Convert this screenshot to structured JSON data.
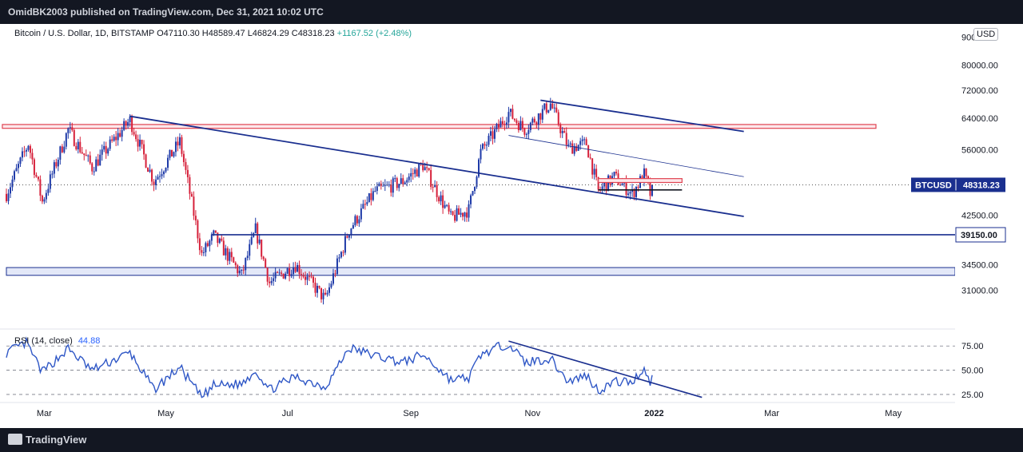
{
  "header": {
    "publisher": "OmidBK2003 published on TradingView.com, Dec 31, 2021 10:02 UTC"
  },
  "legend": {
    "symbol": "Bitcoin / U.S. Dollar, 1D, BITSTAMP",
    "open": "O47110.30",
    "high": "H48589.47",
    "low": "L46824.29",
    "close": "C48318.23",
    "change": "+1167.52 (+2.48%)"
  },
  "currency_button": "USD",
  "footer": {
    "brand": "TradingView"
  },
  "colors": {
    "up": "#26a69a",
    "down": "#ef5350",
    "candle_up": "#1e3aa8",
    "candle_down": "#d6203a",
    "line": "#1a2f8f",
    "rsi": "#2f57c6",
    "resistance": "#e04452"
  },
  "chart_data": {
    "type": "candlestick",
    "y_axis": {
      "scale": "log",
      "visible_range": [
        26500,
        92000
      ],
      "tick_labels": [
        "90000.00",
        "80000.00",
        "72000.00",
        "64000.00",
        "56000.00",
        "42500.00",
        "34500.00",
        "31000.00"
      ],
      "tick_values": [
        90000,
        80000,
        72000,
        64000,
        56000,
        42500,
        34500,
        31000
      ],
      "price_label": "BTCUSD",
      "price_value": "48318.23",
      "level_label": "39150.00",
      "level_value": 39150
    },
    "x_axis": {
      "range": [
        "2021-02-10",
        "2022-06-01"
      ],
      "tick_labels": [
        "Mar",
        "May",
        "Jul",
        "Sep",
        "Nov",
        "2022",
        "Mar",
        "May"
      ],
      "tick_dates": [
        "2021-03-01",
        "2021-05-01",
        "2021-07-01",
        "2021-09-01",
        "2021-11-01",
        "2022-01-01",
        "2022-03-01",
        "2022-05-01"
      ]
    },
    "price_path": [
      {
        "date": "2021-02-10",
        "close": 46500
      },
      {
        "date": "2021-02-21",
        "close": 57500
      },
      {
        "date": "2021-02-28",
        "close": 45000
      },
      {
        "date": "2021-03-13",
        "close": 61000
      },
      {
        "date": "2021-03-25",
        "close": 52000
      },
      {
        "date": "2021-04-13",
        "close": 63500
      },
      {
        "date": "2021-04-25",
        "close": 49000
      },
      {
        "date": "2021-05-08",
        "close": 58000
      },
      {
        "date": "2021-05-19",
        "close": 36000
      },
      {
        "date": "2021-05-25",
        "close": 39000
      },
      {
        "date": "2021-06-08",
        "close": 33000
      },
      {
        "date": "2021-06-15",
        "close": 40000
      },
      {
        "date": "2021-06-22",
        "close": 32000
      },
      {
        "date": "2021-07-05",
        "close": 34500
      },
      {
        "date": "2021-07-20",
        "close": 29800
      },
      {
        "date": "2021-08-01",
        "close": 40000
      },
      {
        "date": "2021-08-14",
        "close": 47000
      },
      {
        "date": "2021-08-28",
        "close": 49000
      },
      {
        "date": "2021-09-07",
        "close": 52500
      },
      {
        "date": "2021-09-21",
        "close": 42000
      },
      {
        "date": "2021-09-30",
        "close": 43500
      },
      {
        "date": "2021-10-06",
        "close": 55500
      },
      {
        "date": "2021-10-20",
        "close": 65500
      },
      {
        "date": "2021-10-28",
        "close": 61000
      },
      {
        "date": "2021-11-10",
        "close": 68000
      },
      {
        "date": "2021-11-19",
        "close": 56500
      },
      {
        "date": "2021-11-28",
        "close": 57500
      },
      {
        "date": "2021-12-04",
        "close": 47000
      },
      {
        "date": "2021-12-12",
        "close": 50000
      },
      {
        "date": "2021-12-21",
        "close": 46500
      },
      {
        "date": "2021-12-27",
        "close": 50500
      },
      {
        "date": "2021-12-30",
        "close": 46500
      },
      {
        "date": "2021-12-31",
        "close": 48318
      }
    ],
    "drawings": {
      "red_resistance_band": [
        61300,
        62300
      ],
      "blue_support_band": [
        33000,
        34100
      ],
      "level_39150_start": "2021-05-24",
      "small_red_box": {
        "from": "2021-12-04",
        "to": "2022-01-15",
        "low": 48800,
        "high": 49600
      },
      "small_support_line": {
        "from": "2021-12-04",
        "to": "2022-01-15",
        "price": 47300
      }
    },
    "rsi": {
      "label": "RSI (14, close)",
      "value": "44.88",
      "tick_labels": [
        "75.00",
        "50.00",
        "25.00"
      ],
      "tick_values": [
        75,
        50,
        25
      ],
      "visible_range": [
        20,
        90
      ],
      "path": [
        {
          "date": "2021-02-10",
          "v": 68
        },
        {
          "date": "2021-02-20",
          "v": 78
        },
        {
          "date": "2021-02-28",
          "v": 48
        },
        {
          "date": "2021-03-13",
          "v": 72
        },
        {
          "date": "2021-03-25",
          "v": 50
        },
        {
          "date": "2021-04-13",
          "v": 68
        },
        {
          "date": "2021-04-25",
          "v": 30
        },
        {
          "date": "2021-05-08",
          "v": 53
        },
        {
          "date": "2021-05-19",
          "v": 22
        },
        {
          "date": "2021-05-25",
          "v": 34
        },
        {
          "date": "2021-06-08",
          "v": 36
        },
        {
          "date": "2021-06-15",
          "v": 50
        },
        {
          "date": "2021-06-22",
          "v": 30
        },
        {
          "date": "2021-07-05",
          "v": 43
        },
        {
          "date": "2021-07-20",
          "v": 33
        },
        {
          "date": "2021-08-01",
          "v": 73
        },
        {
          "date": "2021-08-14",
          "v": 65
        },
        {
          "date": "2021-08-28",
          "v": 58
        },
        {
          "date": "2021-09-07",
          "v": 66
        },
        {
          "date": "2021-09-21",
          "v": 40
        },
        {
          "date": "2021-09-30",
          "v": 42
        },
        {
          "date": "2021-10-06",
          "v": 66
        },
        {
          "date": "2021-10-20",
          "v": 78
        },
        {
          "date": "2021-10-28",
          "v": 58
        },
        {
          "date": "2021-11-10",
          "v": 62
        },
        {
          "date": "2021-11-19",
          "v": 38
        },
        {
          "date": "2021-11-28",
          "v": 45
        },
        {
          "date": "2021-12-04",
          "v": 29
        },
        {
          "date": "2021-12-12",
          "v": 38
        },
        {
          "date": "2021-12-21",
          "v": 38
        },
        {
          "date": "2021-12-27",
          "v": 52
        },
        {
          "date": "2021-12-30",
          "v": 38
        },
        {
          "date": "2021-12-31",
          "v": 44.88
        }
      ]
    }
  }
}
